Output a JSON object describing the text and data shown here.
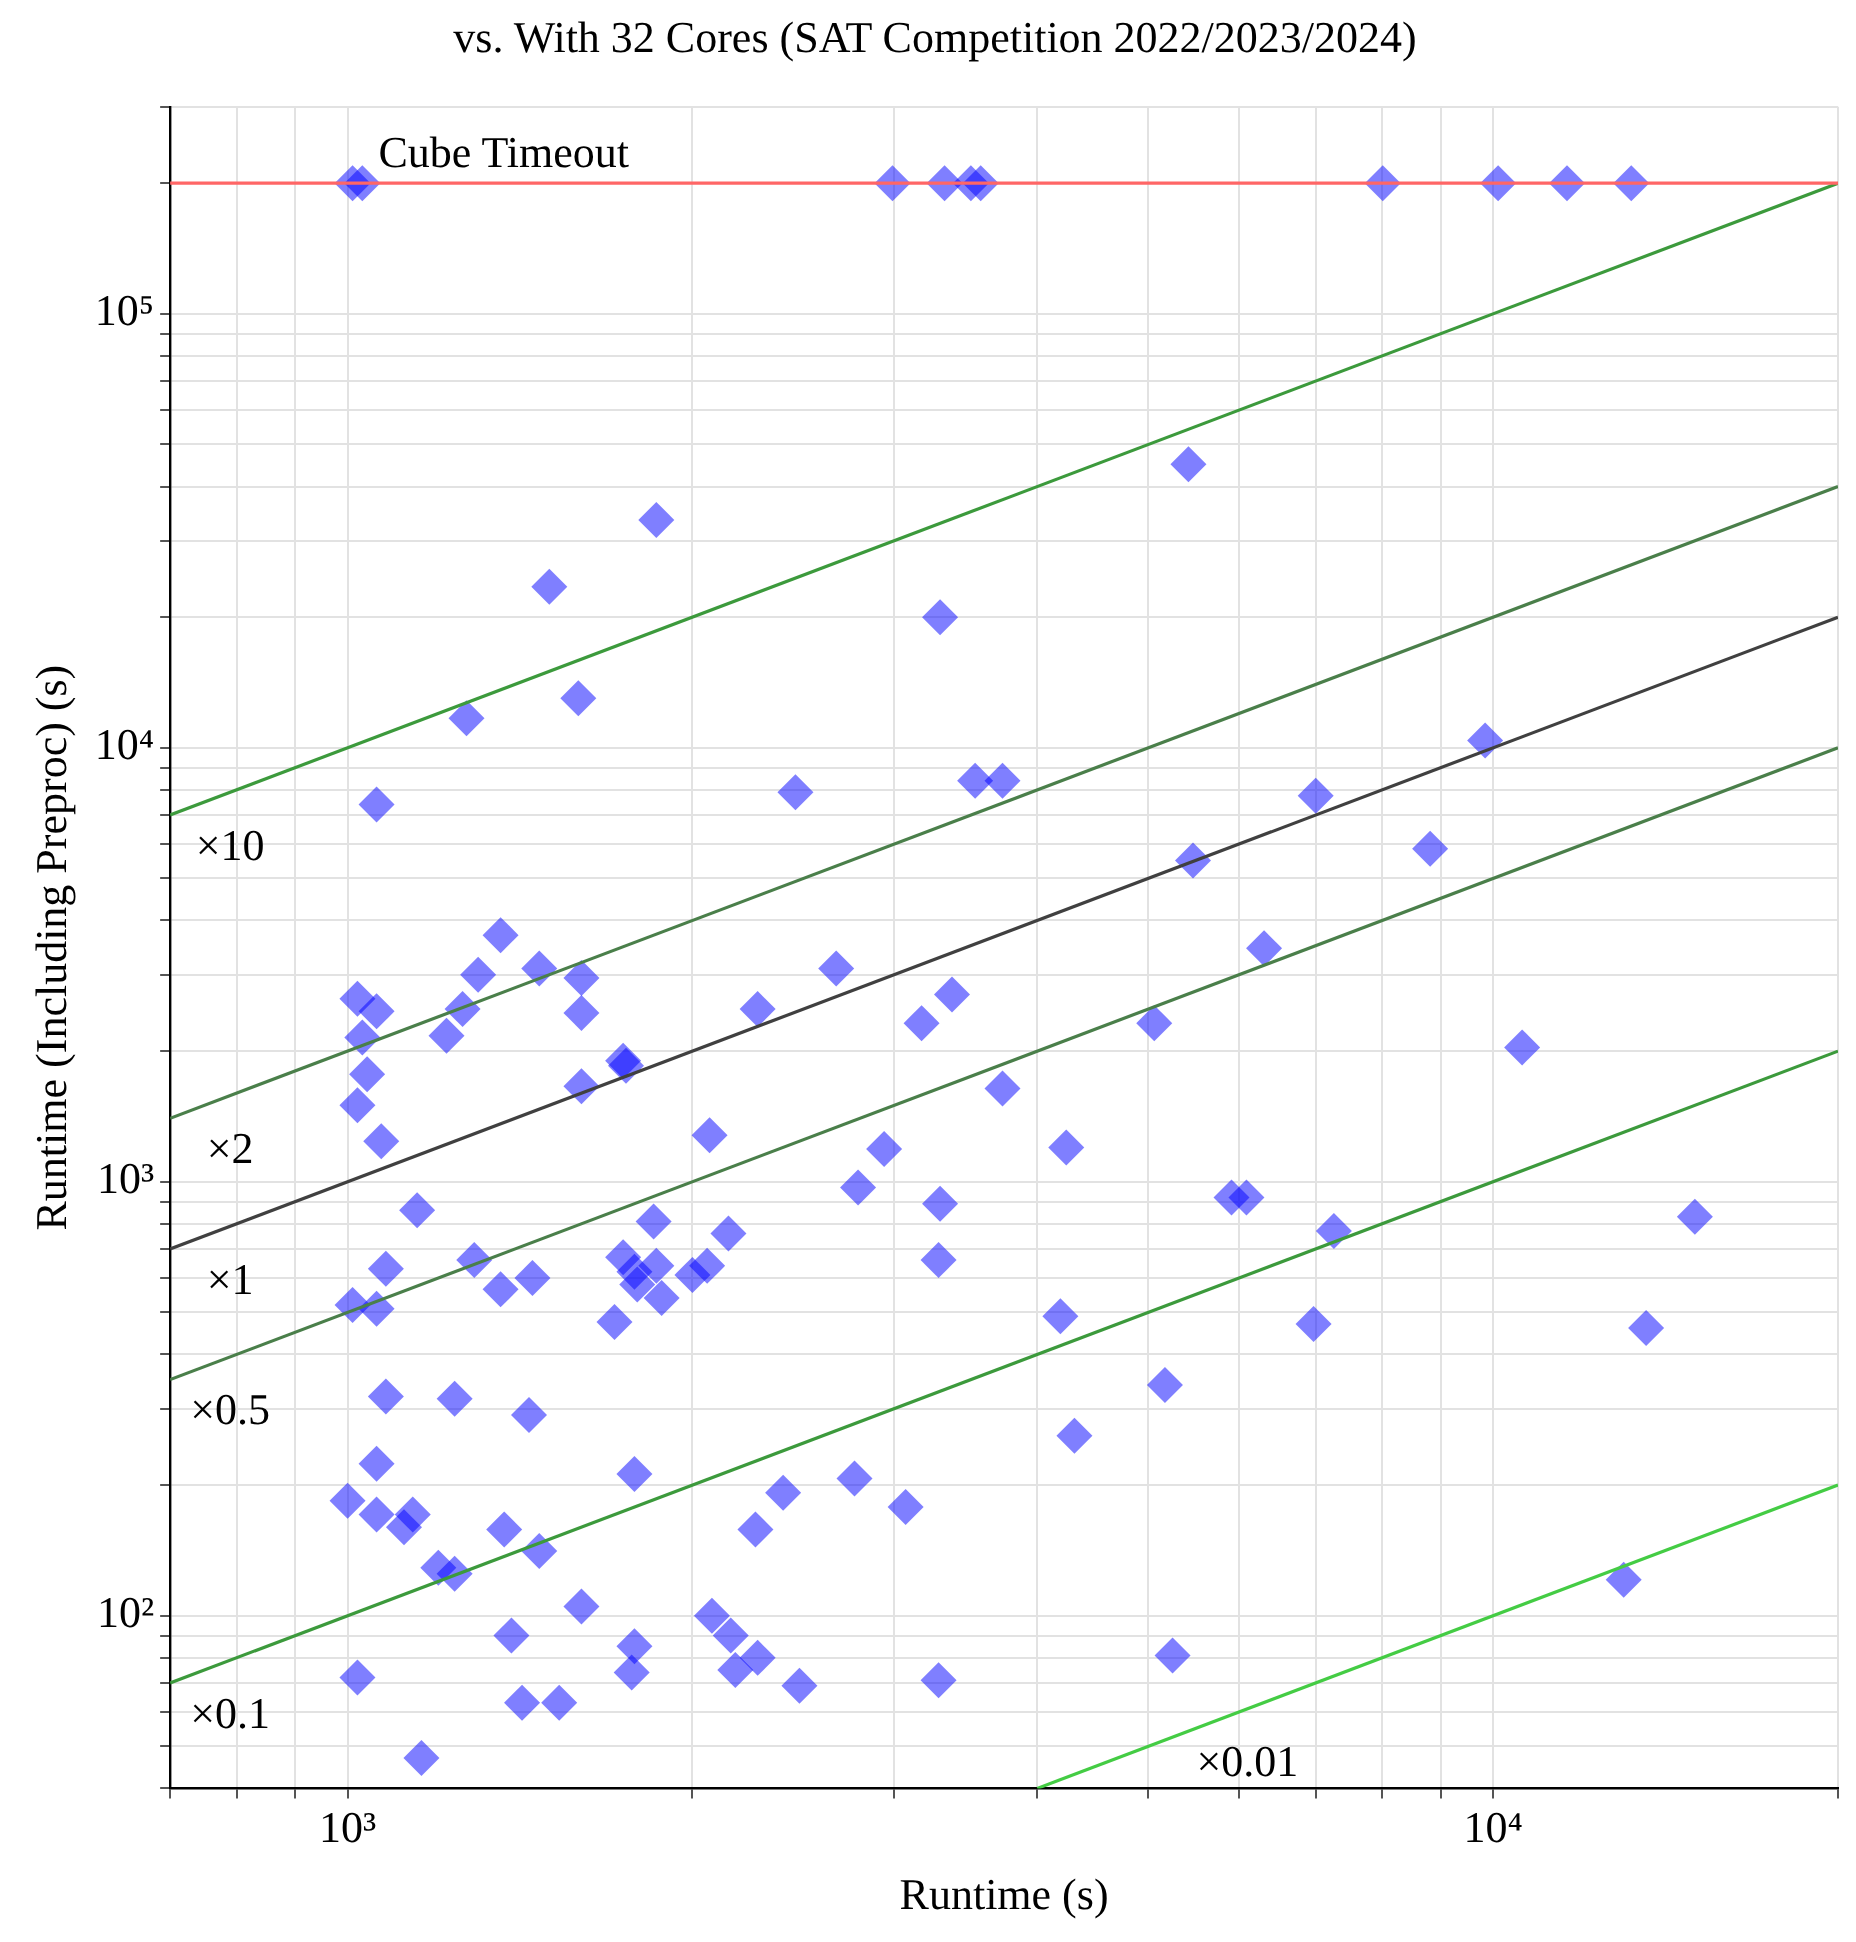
{
  "chart_data": {
    "type": "scatter",
    "title": "vs. With 32 Cores (SAT Competition 2022/2023/2024)",
    "xlabel": "Runtime (s)",
    "ylabel": "Runtime (Including Preproc) (s)",
    "log": "xy",
    "grid": true,
    "legend": false,
    "marker": "diamond",
    "xlim": [
      700,
      20000
    ],
    "ylim": [
      40,
      300000
    ],
    "xticks": [
      {
        "value": 700,
        "label": null
      },
      {
        "value": 800,
        "label": null
      },
      {
        "value": 900,
        "label": null
      },
      {
        "value": 1000,
        "label": "10³"
      },
      {
        "value": 2000,
        "label": null
      },
      {
        "value": 3000,
        "label": null
      },
      {
        "value": 4000,
        "label": null
      },
      {
        "value": 5000,
        "label": null
      },
      {
        "value": 6000,
        "label": null
      },
      {
        "value": 7000,
        "label": null
      },
      {
        "value": 8000,
        "label": null
      },
      {
        "value": 9000,
        "label": null
      },
      {
        "value": 10000,
        "label": "10⁴"
      },
      {
        "value": 20000,
        "label": null
      }
    ],
    "yticks": [
      {
        "value": 40,
        "label": null
      },
      {
        "value": 50,
        "label": null
      },
      {
        "value": 60,
        "label": null
      },
      {
        "value": 70,
        "label": null
      },
      {
        "value": 80,
        "label": null
      },
      {
        "value": 90,
        "label": null
      },
      {
        "value": 100,
        "label": "10²"
      },
      {
        "value": 200,
        "label": null
      },
      {
        "value": 300,
        "label": null
      },
      {
        "value": 400,
        "label": null
      },
      {
        "value": 500,
        "label": null
      },
      {
        "value": 600,
        "label": null
      },
      {
        "value": 700,
        "label": null
      },
      {
        "value": 800,
        "label": null
      },
      {
        "value": 900,
        "label": null
      },
      {
        "value": 1000,
        "label": "10³"
      },
      {
        "value": 2000,
        "label": null
      },
      {
        "value": 3000,
        "label": null
      },
      {
        "value": 4000,
        "label": null
      },
      {
        "value": 5000,
        "label": null
      },
      {
        "value": 6000,
        "label": null
      },
      {
        "value": 7000,
        "label": null
      },
      {
        "value": 8000,
        "label": null
      },
      {
        "value": 9000,
        "label": null
      },
      {
        "value": 10000,
        "label": "10⁴"
      },
      {
        "value": 20000,
        "label": null
      },
      {
        "value": 30000,
        "label": null
      },
      {
        "value": 40000,
        "label": null
      },
      {
        "value": 50000,
        "label": null
      },
      {
        "value": 60000,
        "label": null
      },
      {
        "value": 70000,
        "label": null
      },
      {
        "value": 80000,
        "label": null
      },
      {
        "value": 90000,
        "label": null
      },
      {
        "value": 100000,
        "label": "10⁵"
      },
      {
        "value": 200000,
        "label": null
      },
      {
        "value": 300000,
        "label": null
      }
    ],
    "ref_lines": [
      {
        "axis": "y",
        "value": 200000,
        "label": "Cube Timeout",
        "color": "#ff6666"
      }
    ],
    "series": [
      {
        "type": "line",
        "name": "×10",
        "marker": "none",
        "color": "#3c9a3c",
        "x": [
          700,
          20000
        ],
        "values": [
          7000,
          200000
        ]
      },
      {
        "type": "line",
        "name": "×2",
        "marker": "none",
        "color": "#4a7f4a",
        "x": [
          700,
          20000
        ],
        "values": [
          1400,
          40000
        ]
      },
      {
        "type": "line",
        "name": "×1",
        "marker": "none",
        "color": "#404040",
        "x": [
          700,
          20000
        ],
        "values": [
          700,
          20000
        ]
      },
      {
        "type": "line",
        "name": "×0.5",
        "marker": "none",
        "color": "#4a7f4a",
        "x": [
          700,
          20000
        ],
        "values": [
          350,
          10000
        ]
      },
      {
        "type": "line",
        "name": "×0.1",
        "marker": "none",
        "color": "#3c9a3c",
        "x": [
          700,
          20000
        ],
        "values": [
          70,
          2000
        ]
      },
      {
        "type": "line",
        "name": "×0.01",
        "marker": "none",
        "color": "#44cc44",
        "x": [
          4000,
          20000
        ],
        "values": [
          40,
          200
        ]
      },
      {
        "color": "#0000ff",
        "x": [
          1010,
          1030,
          2990,
          3320,
          3500,
          3570,
          8010,
          10100,
          11600,
          13200,
          5420,
          1860,
          1500,
          3290,
          1590,
          1270,
          1060,
          2460,
          3530,
          3730,
          9840,
          8810,
          7000,
          5470,
          6310,
          1360,
          1300,
          1470,
          2670,
          1740,
          1750,
          1600,
          1600,
          1600,
          1260,
          1220,
          1020,
          1060,
          1030,
          1040,
          1020,
          1070,
          2280,
          3170,
          3370,
          5060,
          10600,
          3730,
          4240,
          2940,
          2790,
          2070,
          1150,
          1290,
          1080,
          1060,
          1010,
          1360,
          1450,
          1740,
          1850,
          1780,
          1860,
          1880,
          1790,
          1710,
          2000,
          2060,
          2150,
          3290,
          3280,
          5910,
          6090,
          7260,
          15000,
          13600,
          4190,
          6970,
          5170,
          4310,
          1080,
          1240,
          1440,
          1060,
          1000,
          1060,
          1120,
          1140,
          1780,
          1370,
          1470,
          1200,
          1240,
          2400,
          2770,
          3070,
          2270,
          1600,
          1390,
          1780,
          2080,
          2160,
          2180,
          2280,
          1770,
          1020,
          1420,
          1530,
          2480,
          3280,
          5250,
          13000,
          1160
        ],
        "values": [
          200000,
          200000,
          200000,
          200000,
          200000,
          200000,
          200000,
          200000,
          200000,
          200000,
          45000,
          33500,
          23500,
          20000,
          13000,
          11700,
          7400,
          7900,
          8400,
          8400,
          10400,
          5850,
          7750,
          5500,
          3450,
          3700,
          3000,
          3100,
          3100,
          1900,
          1850,
          2950,
          2450,
          1660,
          2500,
          2170,
          2640,
          2470,
          2150,
          1770,
          1500,
          1240,
          2500,
          2320,
          2700,
          2320,
          2040,
          1640,
          1200,
          1190,
          970,
          1280,
          860,
          660,
          630,
          510,
          520,
          565,
          600,
          670,
          810,
          620,
          640,
          540,
          580,
          475,
          610,
          640,
          760,
          890,
          660,
          920,
          920,
          770,
          830,
          460,
          490,
          470,
          340,
          260,
          320,
          316,
          290,
          224,
          184,
          171,
          160,
          171,
          212,
          158,
          141,
          129,
          125,
          192,
          207,
          178,
          158,
          105,
          90,
          85,
          100,
          90,
          75,
          80,
          74,
          72,
          63,
          63,
          69,
          71,
          81,
          121,
          47
        ]
      }
    ]
  }
}
